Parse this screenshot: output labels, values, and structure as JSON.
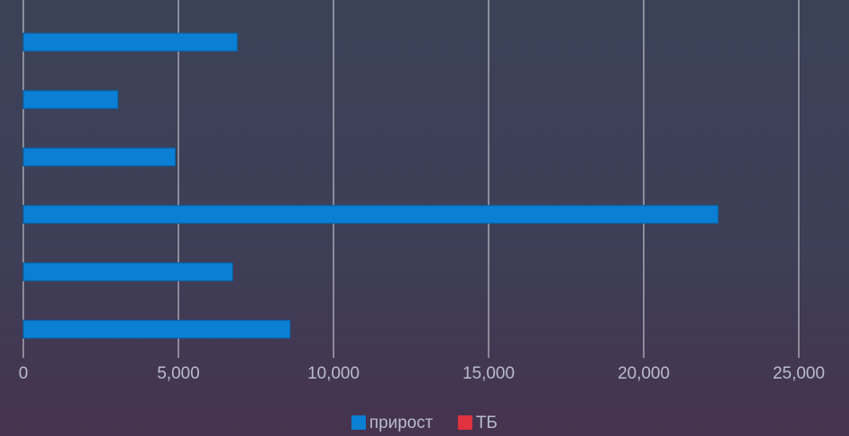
{
  "chart_data": {
    "type": "hbar",
    "categories": [
      null,
      null,
      null,
      null,
      null,
      null
    ],
    "series": [
      {
        "name": "прирост",
        "color": "#0a7fd4",
        "values": [
          6900,
          3050,
          4900,
          22400,
          6750,
          8600
        ]
      },
      {
        "name": "ТБ",
        "color": "#e0323f",
        "values": [
          0,
          0,
          0,
          0,
          0,
          0
        ]
      }
    ],
    "xlim": [
      0,
      25000
    ],
    "xticks": [
      0,
      {
        "value": 5000,
        "label": "5,000"
      },
      {
        "value": 10000,
        "label": "10,000"
      },
      {
        "value": 15000,
        "label": "15,000"
      },
      {
        "value": 20000,
        "label": "20,000"
      },
      {
        "value": 25000,
        "label": "25,000"
      }
    ],
    "grid": true
  }
}
